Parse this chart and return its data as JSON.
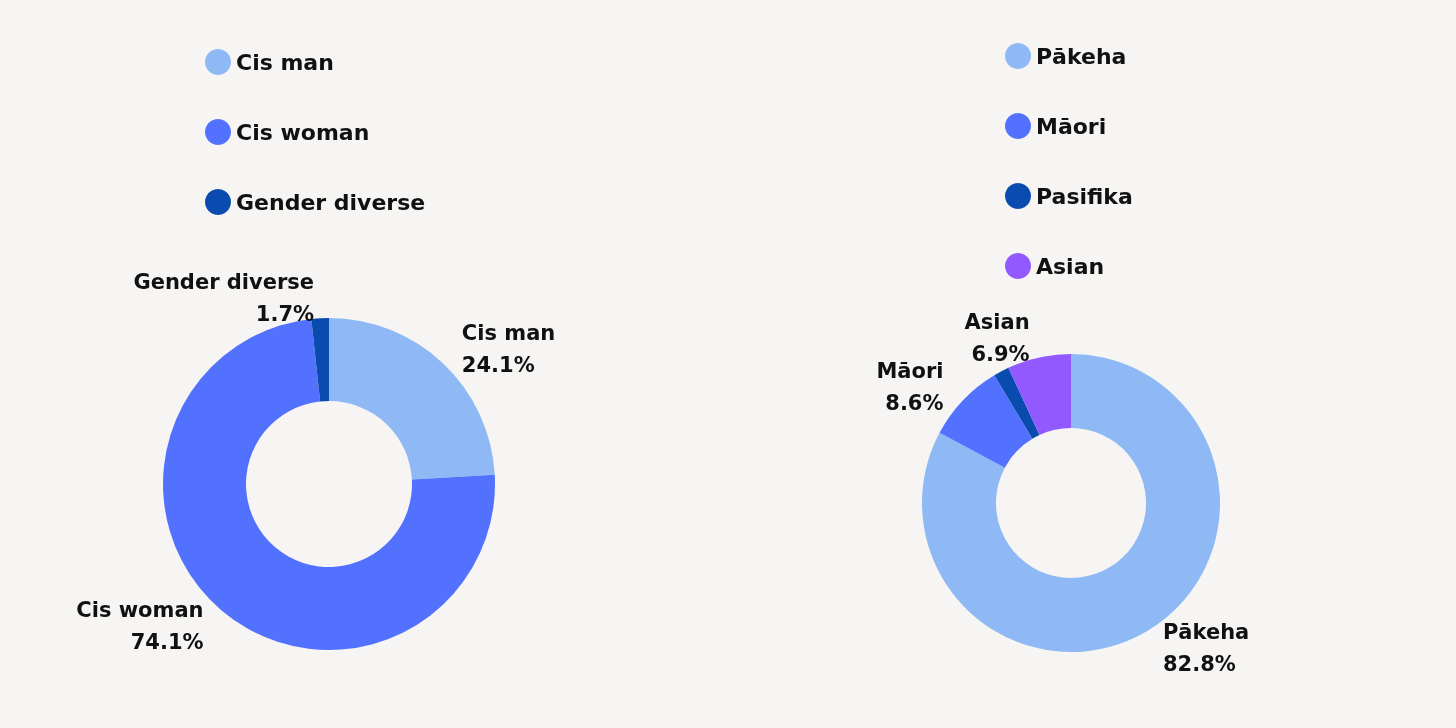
{
  "chart_data": [
    {
      "type": "donut",
      "categories": [
        "Cis man",
        "Cis woman",
        "Gender diverse"
      ],
      "values": [
        24.1,
        74.1,
        1.7
      ],
      "colors": [
        "#8fb9f5",
        "#5271ff",
        "#0a4bb0"
      ],
      "value_labels": [
        "24.1%",
        "74.1%",
        "1.7%"
      ],
      "legend": "top left"
    },
    {
      "type": "donut",
      "categories": [
        "Pākeha",
        "Māori",
        "Pasifika",
        "Asian"
      ],
      "values": [
        82.8,
        8.6,
        1.7,
        6.9
      ],
      "colors": [
        "#8fb9f5",
        "#5271ff",
        "#0a4bb0",
        "#9159ff"
      ],
      "value_labels": [
        "82.8%",
        "8.6%",
        null,
        "6.9%"
      ],
      "legend": "top left"
    }
  ]
}
